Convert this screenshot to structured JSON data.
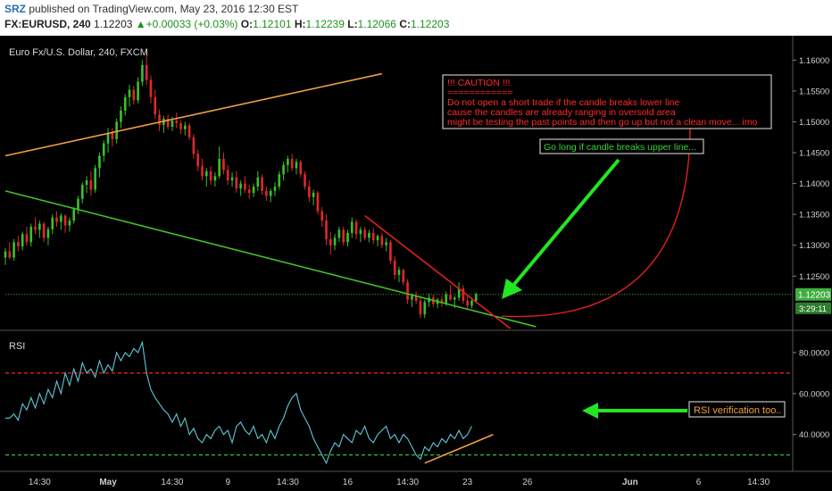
{
  "header": {
    "author": "SRZ",
    "published_text": "published on TradingView.com, May 23, 2016 12:30 EST",
    "symbol_label": "FX:EURUSD, 240",
    "last": "1.12203",
    "change": "+0.00033 (+0.03%)",
    "open_label": "O:",
    "open": "1.12101",
    "high_label": "H:",
    "high": "1.12239",
    "low_label": "L:",
    "low": "1.12066",
    "close_label": "C:",
    "close": "1.12203"
  },
  "chart_data": [
    {
      "type": "candlestick",
      "title": "Euro Fx/U.S. Dollar, 240, FXCM",
      "ylim": [
        1.1165,
        1.1628
      ],
      "y_ticks": [
        "1.16000",
        "1.15500",
        "1.15000",
        "1.14500",
        "1.14000",
        "1.13500",
        "1.13000",
        "1.12500"
      ],
      "y_tick_values": [
        1.16,
        1.155,
        1.15,
        1.145,
        1.14,
        1.135,
        1.13,
        1.125
      ],
      "price_badge": {
        "label": "1.12203",
        "value": 1.12203
      },
      "countdown_badge": {
        "label": "3:29:11"
      },
      "x_ticks": [
        "14:30",
        "May",
        "14:30",
        "9",
        "14:30",
        "16",
        "14:30",
        "23",
        "26",
        "Jun",
        "6",
        "14:30"
      ],
      "x_tick_index": [
        8,
        24,
        39,
        52,
        66,
        80,
        94,
        108,
        122,
        146,
        162,
        176
      ],
      "x_range_index": [
        0,
        184
      ],
      "candles": [
        [
          1.128,
          1.1295,
          1.1268,
          1.129
        ],
        [
          1.129,
          1.1305,
          1.1278,
          1.128
        ],
        [
          1.128,
          1.131,
          1.1275,
          1.1305
        ],
        [
          1.1305,
          1.1315,
          1.129,
          1.1298
        ],
        [
          1.1298,
          1.1322,
          1.1292,
          1.1318
        ],
        [
          1.1318,
          1.133,
          1.13,
          1.1305
        ],
        [
          1.1305,
          1.1335,
          1.1298,
          1.133
        ],
        [
          1.133,
          1.1345,
          1.1318,
          1.1325
        ],
        [
          1.1325,
          1.134,
          1.1312,
          1.1335
        ],
        [
          1.1335,
          1.1338,
          1.1305,
          1.1312
        ],
        [
          1.1312,
          1.133,
          1.13,
          1.1326
        ],
        [
          1.1326,
          1.135,
          1.1318,
          1.1345
        ],
        [
          1.1345,
          1.1355,
          1.133,
          1.1338
        ],
        [
          1.1338,
          1.1352,
          1.1325,
          1.1348
        ],
        [
          1.1348,
          1.135,
          1.132,
          1.1332
        ],
        [
          1.1332,
          1.1345,
          1.1322,
          1.134
        ],
        [
          1.134,
          1.1362,
          1.1335,
          1.1358
        ],
        [
          1.1358,
          1.138,
          1.135,
          1.1375
        ],
        [
          1.1375,
          1.1402,
          1.1368,
          1.1398
        ],
        [
          1.1398,
          1.1412,
          1.1385,
          1.1405
        ],
        [
          1.1405,
          1.142,
          1.138,
          1.139
        ],
        [
          1.139,
          1.143,
          1.1385,
          1.1425
        ],
        [
          1.1425,
          1.145,
          1.141,
          1.1445
        ],
        [
          1.1445,
          1.147,
          1.1435,
          1.1465
        ],
        [
          1.1465,
          1.149,
          1.145,
          1.1482
        ],
        [
          1.1482,
          1.149,
          1.146,
          1.1472
        ],
        [
          1.1472,
          1.1505,
          1.1465,
          1.15
        ],
        [
          1.15,
          1.1525,
          1.149,
          1.1518
        ],
        [
          1.1518,
          1.1545,
          1.151,
          1.154
        ],
        [
          1.154,
          1.156,
          1.1525,
          1.1552
        ],
        [
          1.1552,
          1.1558,
          1.1528,
          1.1535
        ],
        [
          1.1535,
          1.1572,
          1.153,
          1.1565
        ],
        [
          1.1565,
          1.16,
          1.1558,
          1.1592
        ],
        [
          1.1592,
          1.1614,
          1.156,
          1.1568
        ],
        [
          1.1568,
          1.1575,
          1.153,
          1.154
        ],
        [
          1.154,
          1.1552,
          1.1505,
          1.1512
        ],
        [
          1.1512,
          1.152,
          1.1485,
          1.1495
        ],
        [
          1.1495,
          1.151,
          1.1482,
          1.1505
        ],
        [
          1.1505,
          1.1512,
          1.1488,
          1.1492
        ],
        [
          1.1492,
          1.1508,
          1.1485,
          1.1502
        ],
        [
          1.1502,
          1.1515,
          1.149,
          1.1498
        ],
        [
          1.1498,
          1.1502,
          1.148,
          1.1488
        ],
        [
          1.1488,
          1.15,
          1.1478,
          1.1494
        ],
        [
          1.1494,
          1.1498,
          1.147,
          1.1475
        ],
        [
          1.1475,
          1.148,
          1.144,
          1.1448
        ],
        [
          1.1448,
          1.1455,
          1.142,
          1.1428
        ],
        [
          1.1428,
          1.144,
          1.1405,
          1.1412
        ],
        [
          1.1412,
          1.1425,
          1.1395,
          1.142
        ],
        [
          1.142,
          1.1428,
          1.1398,
          1.1405
        ],
        [
          1.1405,
          1.1418,
          1.1395,
          1.1412
        ],
        [
          1.1412,
          1.146,
          1.1408,
          1.144
        ],
        [
          1.144,
          1.145,
          1.1415,
          1.1422
        ],
        [
          1.1422,
          1.143,
          1.1398,
          1.1405
        ],
        [
          1.1405,
          1.1418,
          1.1395,
          1.141
        ],
        [
          1.141,
          1.142,
          1.1385,
          1.1392
        ],
        [
          1.1392,
          1.1405,
          1.138,
          1.14
        ],
        [
          1.14,
          1.1412,
          1.1385,
          1.139
        ],
        [
          1.139,
          1.1398,
          1.1375,
          1.1385
        ],
        [
          1.1385,
          1.14,
          1.1378,
          1.1395
        ],
        [
          1.1395,
          1.142,
          1.1388,
          1.141
        ],
        [
          1.141,
          1.1415,
          1.1382,
          1.1388
        ],
        [
          1.1388,
          1.1395,
          1.1372,
          1.138
        ],
        [
          1.138,
          1.1392,
          1.137,
          1.1388
        ],
        [
          1.1388,
          1.1402,
          1.138,
          1.1395
        ],
        [
          1.1395,
          1.142,
          1.139,
          1.1415
        ],
        [
          1.1415,
          1.1435,
          1.1405,
          1.143
        ],
        [
          1.143,
          1.1445,
          1.1418,
          1.144
        ],
        [
          1.144,
          1.1448,
          1.142,
          1.1425
        ],
        [
          1.1425,
          1.144,
          1.1415,
          1.1435
        ],
        [
          1.1435,
          1.1438,
          1.141,
          1.1415
        ],
        [
          1.1415,
          1.142,
          1.139,
          1.1395
        ],
        [
          1.1395,
          1.1405,
          1.137,
          1.1378
        ],
        [
          1.1378,
          1.139,
          1.1365,
          1.1385
        ],
        [
          1.1385,
          1.1388,
          1.135,
          1.1355
        ],
        [
          1.1355,
          1.1362,
          1.133,
          1.134
        ],
        [
          1.134,
          1.135,
          1.13,
          1.131
        ],
        [
          1.131,
          1.1322,
          1.1285,
          1.13
        ],
        [
          1.13,
          1.1318,
          1.1292,
          1.1312
        ],
        [
          1.1312,
          1.133,
          1.1305,
          1.1325
        ],
        [
          1.1325,
          1.133,
          1.13,
          1.1305
        ],
        [
          1.1305,
          1.1325,
          1.1298,
          1.132
        ],
        [
          1.132,
          1.1345,
          1.1312,
          1.1338
        ],
        [
          1.1338,
          1.1342,
          1.131,
          1.1318
        ],
        [
          1.1318,
          1.133,
          1.1305,
          1.1325
        ],
        [
          1.1325,
          1.133,
          1.1308,
          1.1312
        ],
        [
          1.1312,
          1.1325,
          1.1305,
          1.132
        ],
        [
          1.132,
          1.1328,
          1.1302,
          1.1308
        ],
        [
          1.1308,
          1.1318,
          1.1298,
          1.1315
        ],
        [
          1.1315,
          1.132,
          1.1295,
          1.13
        ],
        [
          1.13,
          1.1312,
          1.129,
          1.1305
        ],
        [
          1.1305,
          1.1308,
          1.127,
          1.1275
        ],
        [
          1.1275,
          1.1282,
          1.1245,
          1.1252
        ],
        [
          1.1252,
          1.1265,
          1.124,
          1.126
        ],
        [
          1.126,
          1.1262,
          1.1235,
          1.124
        ],
        [
          1.124,
          1.1245,
          1.1205,
          1.1212
        ],
        [
          1.1212,
          1.1222,
          1.12,
          1.1218
        ],
        [
          1.1218,
          1.1225,
          1.1205,
          1.121
        ],
        [
          1.121,
          1.1218,
          1.1182,
          1.1188
        ],
        [
          1.1188,
          1.1212,
          1.1182,
          1.1208
        ],
        [
          1.1208,
          1.1222,
          1.12,
          1.1215
        ],
        [
          1.1215,
          1.122,
          1.12,
          1.1205
        ],
        [
          1.1205,
          1.1215,
          1.1198,
          1.1212
        ],
        [
          1.1212,
          1.1218,
          1.12,
          1.1206
        ],
        [
          1.1206,
          1.1225,
          1.1202,
          1.122
        ],
        [
          1.122,
          1.1235,
          1.121,
          1.1212
        ],
        [
          1.1212,
          1.1218,
          1.1198,
          1.1215
        ],
        [
          1.1215,
          1.124,
          1.121,
          1.123
        ],
        [
          1.123,
          1.1235,
          1.1205,
          1.121
        ],
        [
          1.121,
          1.1218,
          1.1195,
          1.1202
        ],
        [
          1.1202,
          1.1215,
          1.1198,
          1.121
        ],
        [
          1.121,
          1.1224,
          1.1206,
          1.12203
        ]
      ],
      "drawings": [
        {
          "kind": "trendline",
          "color": "#f0a040",
          "from": [
            0,
            1.1445
          ],
          "to": [
            88,
            1.1578
          ]
        },
        {
          "kind": "trendline",
          "color": "#44c028",
          "from": [
            0,
            1.1388
          ],
          "to": [
            124,
            1.1168
          ]
        },
        {
          "kind": "trendline",
          "color": "#e02020",
          "from": [
            84,
            1.1348
          ],
          "to": [
            118,
            1.1165
          ]
        },
        {
          "kind": "curve",
          "color": "#e02020",
          "from": [
            116,
            1.1185
          ],
          "to": [
            160,
            1.1508
          ]
        }
      ],
      "annotations": {
        "caution_title": "!!! CAUTION !!!",
        "caution_sep": "============",
        "caution_lines": [
          "Do not open a short trade if the candle breaks lower line",
          "cause the candles are already ranging in oversold area",
          "might be testing the past points and then go up but not a clean move... imo"
        ],
        "long_note": "Go long if candle breaks upper line..."
      }
    },
    {
      "type": "line",
      "title": "RSI",
      "ylim": [
        22,
        90
      ],
      "y_ticks": [
        "80.0000",
        "60.0000",
        "40.0000"
      ],
      "y_tick_values": [
        80,
        60,
        40
      ],
      "levels": [
        {
          "value": 70,
          "color": "#ff2020"
        },
        {
          "value": 30,
          "color": "#30c030"
        }
      ],
      "values": [
        48,
        48,
        50,
        47,
        55,
        52,
        58,
        53,
        60,
        55,
        62,
        58,
        66,
        60,
        70,
        64,
        72,
        66,
        75,
        70,
        72,
        68,
        76,
        70,
        74,
        71,
        80,
        76,
        80,
        78,
        82,
        80,
        85,
        70,
        62,
        58,
        55,
        52,
        50,
        46,
        50,
        44,
        48,
        40,
        43,
        38,
        36,
        40,
        38,
        42,
        44,
        40,
        42,
        36,
        44,
        46,
        42,
        40,
        44,
        38,
        40,
        36,
        42,
        38,
        44,
        48,
        54,
        58,
        60,
        52,
        48,
        44,
        38,
        34,
        30,
        26,
        32,
        36,
        34,
        40,
        38,
        36,
        42,
        40,
        44,
        38,
        36,
        40,
        42,
        44,
        38,
        40,
        36,
        40,
        38,
        34,
        30,
        28,
        34,
        32,
        36,
        34,
        38,
        36,
        40,
        38,
        42,
        38,
        40,
        44
      ],
      "drawings": [
        {
          "kind": "trendline",
          "color": "#f0a040",
          "from": [
            98,
            26
          ],
          "to": [
            114,
            40
          ]
        }
      ],
      "annotations": {
        "rsi_note": "RSI verification too.."
      }
    }
  ]
}
